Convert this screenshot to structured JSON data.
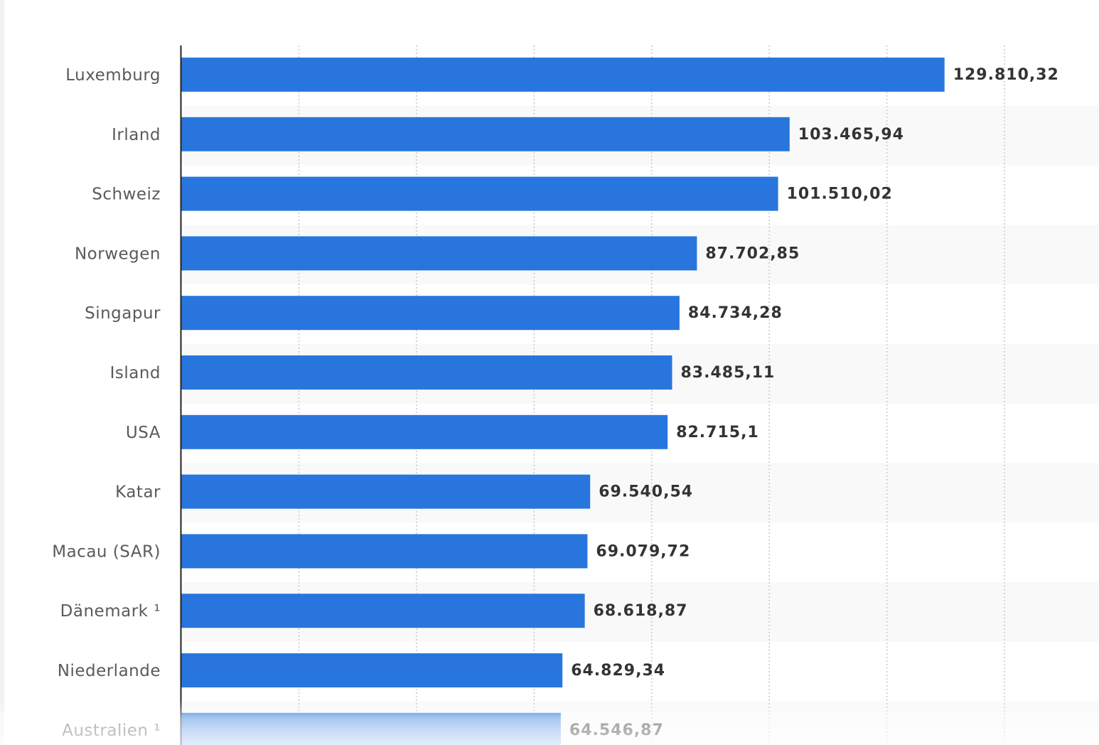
{
  "chart_data": {
    "type": "bar",
    "orientation": "horizontal",
    "categories": [
      "Luxemburg",
      "Irland",
      "Schweiz",
      "Norwegen",
      "Singapur",
      "Island",
      "USA",
      "Katar",
      "Macau (SAR)",
      "Dänemark ¹",
      "Niederlande",
      "Australien ¹"
    ],
    "values": [
      129810.32,
      103465.94,
      101510.02,
      87702.85,
      84734.28,
      83485.11,
      82715.1,
      69540.54,
      69079.72,
      68618.87,
      64829.34,
      64546.87
    ],
    "value_labels": [
      "129.810,32",
      "103.465,94",
      "101.510,02",
      "87.702,85",
      "84.734,28",
      "83.485,11",
      "82.715,1",
      "69.540,54",
      "69.079,72",
      "68.618,87",
      "64.829,34",
      "64.546,87"
    ],
    "xlim": [
      0,
      140000
    ],
    "x_gridlines": [
      20000,
      40000,
      60000,
      80000,
      100000,
      120000,
      140000
    ],
    "grid": true,
    "bar_color": "#2876dd",
    "row_band_color": "#f9f9f9"
  }
}
